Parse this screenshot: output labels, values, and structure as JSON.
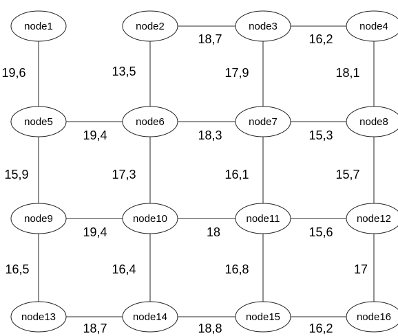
{
  "nodes": [
    {
      "id": "node1",
      "label": "node1"
    },
    {
      "id": "node2",
      "label": "node2"
    },
    {
      "id": "node3",
      "label": "node3"
    },
    {
      "id": "node4",
      "label": "node4"
    },
    {
      "id": "node5",
      "label": "node5"
    },
    {
      "id": "node6",
      "label": "node6"
    },
    {
      "id": "node7",
      "label": "node7"
    },
    {
      "id": "node8",
      "label": "node8"
    },
    {
      "id": "node9",
      "label": "node9"
    },
    {
      "id": "node10",
      "label": "node10"
    },
    {
      "id": "node11",
      "label": "node11"
    },
    {
      "id": "node12",
      "label": "node12"
    },
    {
      "id": "node13",
      "label": "node13"
    },
    {
      "id": "node14",
      "label": "node14"
    },
    {
      "id": "node15",
      "label": "node15"
    },
    {
      "id": "node16",
      "label": "node16"
    }
  ],
  "edges": [
    {
      "id": "e-2-3",
      "from": "node2",
      "to": "node3",
      "weight": "18,7"
    },
    {
      "id": "e-3-4",
      "from": "node3",
      "to": "node4",
      "weight": "16,2"
    },
    {
      "id": "e-1-5",
      "from": "node1",
      "to": "node5",
      "weight": "19,6"
    },
    {
      "id": "e-2-6",
      "from": "node2",
      "to": "node6",
      "weight": "13,5"
    },
    {
      "id": "e-3-7",
      "from": "node3",
      "to": "node7",
      "weight": "17,9"
    },
    {
      "id": "e-4-8",
      "from": "node4",
      "to": "node8",
      "weight": "18,1"
    },
    {
      "id": "e-5-6",
      "from": "node5",
      "to": "node6",
      "weight": "19,4"
    },
    {
      "id": "e-6-7",
      "from": "node6",
      "to": "node7",
      "weight": "18,3"
    },
    {
      "id": "e-7-8",
      "from": "node7",
      "to": "node8",
      "weight": "15,3"
    },
    {
      "id": "e-5-9",
      "from": "node5",
      "to": "node9",
      "weight": "15,9"
    },
    {
      "id": "e-6-10",
      "from": "node6",
      "to": "node10",
      "weight": "17,3"
    },
    {
      "id": "e-7-11",
      "from": "node7",
      "to": "node11",
      "weight": "16,1"
    },
    {
      "id": "e-8-12",
      "from": "node8",
      "to": "node12",
      "weight": "15,7"
    },
    {
      "id": "e-9-10",
      "from": "node9",
      "to": "node10",
      "weight": "19,4"
    },
    {
      "id": "e-10-11",
      "from": "node10",
      "to": "node11",
      "weight": "18"
    },
    {
      "id": "e-11-12",
      "from": "node11",
      "to": "node12",
      "weight": "15,6"
    },
    {
      "id": "e-9-13",
      "from": "node9",
      "to": "node13",
      "weight": "16,5"
    },
    {
      "id": "e-10-14",
      "from": "node10",
      "to": "node14",
      "weight": "16,4"
    },
    {
      "id": "e-11-15",
      "from": "node11",
      "to": "node15",
      "weight": "16,8"
    },
    {
      "id": "e-12-16",
      "from": "node12",
      "to": "node16",
      "weight": "17"
    },
    {
      "id": "e-13-14",
      "from": "node13",
      "to": "node14",
      "weight": "18,7"
    },
    {
      "id": "e-14-15",
      "from": "node14",
      "to": "node15",
      "weight": "18,8"
    },
    {
      "id": "e-15-16",
      "from": "node15",
      "to": "node16",
      "weight": "16,2"
    }
  ]
}
